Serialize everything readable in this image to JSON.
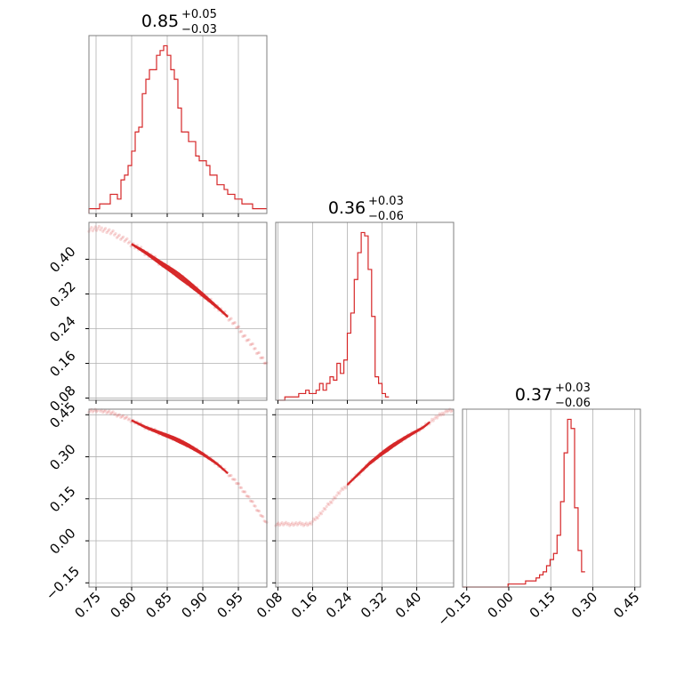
{
  "chart_data": {
    "type": "corner",
    "color": "#d62728",
    "grid": true,
    "parameters": [
      {
        "range": [
          0.74,
          0.99
        ],
        "ticks": [
          0.75,
          0.8,
          0.85,
          0.9,
          0.95
        ],
        "tick_labels": [
          "0.75",
          "0.80",
          "0.85",
          "0.90",
          "0.95"
        ]
      },
      {
        "range": [
          0.075,
          0.485
        ],
        "ticks": [
          0.08,
          0.16,
          0.24,
          0.32,
          0.4
        ],
        "tick_labels": [
          "0.08",
          "0.16",
          "0.24",
          "0.32",
          "0.40"
        ]
      },
      {
        "range": [
          -0.165,
          0.47
        ],
        "ticks": [
          -0.15,
          0.0,
          0.15,
          0.3,
          0.45
        ],
        "tick_labels": [
          "−0.15",
          "0.00",
          "0.15",
          "0.30",
          "0.45"
        ]
      }
    ],
    "titles": [
      {
        "value": "0.85",
        "plus": "+0.05",
        "minus": "−0.03"
      },
      {
        "value": "0.36",
        "plus": "+0.03",
        "minus": "−0.06"
      },
      {
        "value": "0.37",
        "plus": "+0.03",
        "minus": "−0.06"
      }
    ],
    "histograms": [
      {
        "bin_start": 0.74,
        "bin_width": 0.005,
        "counts": [
          1,
          1,
          1,
          2,
          2,
          2,
          4,
          4,
          3,
          7,
          8,
          10,
          13,
          17,
          18,
          25,
          28,
          30,
          30,
          33,
          34,
          35,
          33,
          30,
          28,
          22,
          17,
          17,
          15,
          15,
          12,
          11,
          11,
          10,
          8,
          8,
          6,
          6,
          5,
          4,
          4,
          3,
          3,
          2,
          2,
          2,
          1,
          1,
          1,
          1
        ]
      },
      {
        "bin_start": 0.08,
        "bin_width": 0.008,
        "counts": [
          0,
          0,
          1,
          1,
          1,
          1,
          2,
          2,
          3,
          2,
          2,
          3,
          5,
          3,
          5,
          7,
          6,
          11,
          8,
          12,
          20,
          26,
          36,
          44,
          50,
          49,
          39,
          25,
          7,
          5,
          2,
          1
        ]
      },
      {
        "bin_start": -0.165,
        "bin_width": 0.0125,
        "counts": [
          0,
          0,
          0,
          0,
          0,
          0,
          0,
          0,
          0,
          0,
          0,
          0,
          0,
          1,
          1,
          1,
          1,
          1,
          2,
          2,
          2,
          3,
          4,
          5,
          7,
          9,
          11,
          17,
          28,
          44,
          55,
          52,
          26,
          12,
          5
        ]
      }
    ],
    "curve": {
      "x": [
        0.76,
        0.78,
        0.8,
        0.82,
        0.84,
        0.86,
        0.88,
        0.9,
        0.92,
        0.94,
        0.96,
        0.98,
        0.99
      ],
      "y": [
        0.47,
        0.455,
        0.435,
        0.415,
        0.392,
        0.37,
        0.345,
        0.318,
        0.29,
        0.26,
        0.22,
        0.18,
        0.155
      ],
      "z": [
        0.465,
        0.45,
        0.43,
        0.405,
        0.385,
        0.365,
        0.34,
        0.31,
        0.275,
        0.23,
        0.17,
        0.1,
        0.06
      ]
    },
    "contour_core": {
      "x_start": 0.8,
      "x_end": 0.935,
      "y_start": 0.425,
      "y_end": 0.245
    }
  }
}
